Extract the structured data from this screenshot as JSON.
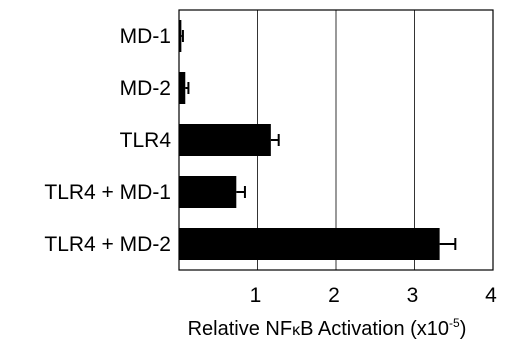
{
  "chart_data": {
    "type": "bar",
    "orientation": "horizontal",
    "categories": [
      "MD-1",
      "MD-2",
      "TLR4",
      "TLR4 + MD-1",
      "TLR4 + MD-2"
    ],
    "values": [
      0.03,
      0.08,
      1.17,
      0.73,
      3.32
    ],
    "errors": [
      0.02,
      0.04,
      0.1,
      0.11,
      0.2
    ],
    "xlim": [
      0,
      4
    ],
    "xticks": [
      "1",
      "2",
      "3",
      "4"
    ],
    "xlabel": {
      "prefix": "Relative NF",
      "kappa": "κ",
      "suffix": "B Activation (x10",
      "exponent": "-5",
      "close": ")"
    },
    "gridlines": true,
    "bar_color": "#000000"
  }
}
